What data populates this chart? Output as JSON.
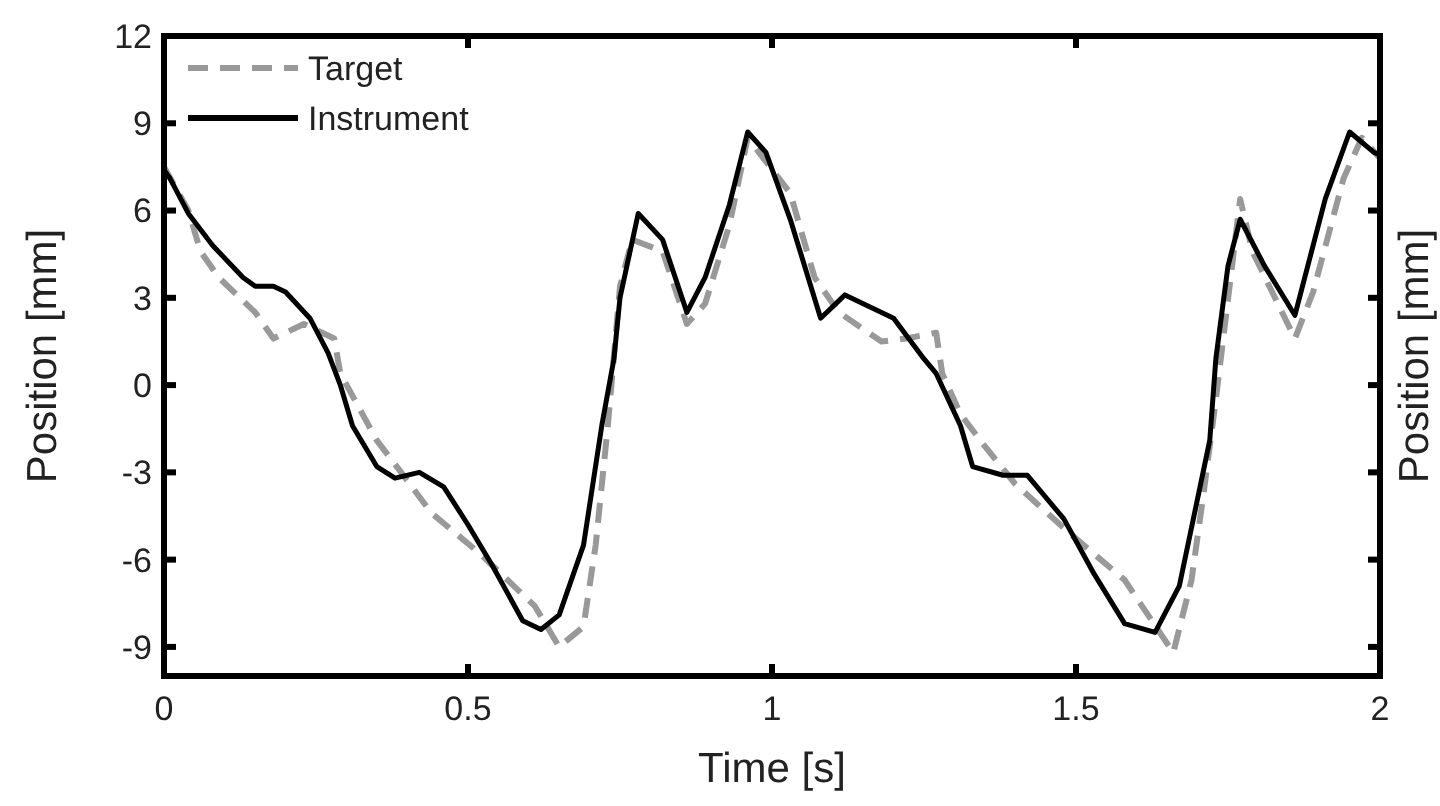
{
  "chart_data": {
    "type": "line",
    "xlabel": "Time [s]",
    "ylabel": "Position [mm]",
    "y2label": "Position [mm]",
    "xlim": [
      0,
      2
    ],
    "xticks": [
      0,
      0.5,
      1,
      1.5,
      2
    ],
    "ylim": [
      -10,
      12
    ],
    "yticks": [
      -9,
      -6,
      -3,
      0,
      3,
      6,
      9,
      12
    ],
    "legend": "top left",
    "grid": false,
    "series": [
      {
        "name": "Target",
        "color": "#999999",
        "line_style": "dashed",
        "x": [
          0,
          0.04,
          0.06,
          0.09,
          0.15,
          0.18,
          0.23,
          0.28,
          0.29,
          0.35,
          0.39,
          0.44,
          0.52,
          0.61,
          0.65,
          0.69,
          0.71,
          0.73,
          0.75,
          0.77,
          0.82,
          0.86,
          0.89,
          0.93,
          0.96,
          1.03,
          1.07,
          1.11,
          1.18,
          1.22,
          1.27,
          1.28,
          1.31,
          1.35,
          1.4,
          1.49,
          1.58,
          1.66,
          1.69,
          1.71,
          1.73,
          1.77,
          1.79,
          1.86,
          1.89,
          1.94,
          1.97,
          2
        ],
        "values": [
          7.5,
          6,
          4.6,
          3.7,
          2.5,
          1.6,
          2.1,
          1.6,
          0.4,
          -1.9,
          -3,
          -4.4,
          -5.8,
          -7.6,
          -9,
          -8.3,
          -5.5,
          -1.4,
          3.4,
          5,
          4.6,
          2.1,
          2.8,
          5.5,
          8.5,
          6.6,
          3.7,
          2.5,
          1.5,
          1.6,
          1.8,
          0.4,
          -1,
          -2.1,
          -3.4,
          -5.1,
          -6.7,
          -9.2,
          -6.7,
          -3.7,
          -0.5,
          6.4,
          4.6,
          1.6,
          3.2,
          7.1,
          8.5,
          7.8
        ]
      },
      {
        "name": "Instrument",
        "color": "#000000",
        "line_style": "solid",
        "x": [
          0,
          0.01,
          0.04,
          0.08,
          0.13,
          0.15,
          0.18,
          0.2,
          0.24,
          0.27,
          0.29,
          0.31,
          0.35,
          0.38,
          0.42,
          0.46,
          0.5,
          0.54,
          0.59,
          0.62,
          0.65,
          0.69,
          0.72,
          0.74,
          0.75,
          0.78,
          0.82,
          0.86,
          0.89,
          0.93,
          0.96,
          0.99,
          1.03,
          1.08,
          1.12,
          1.2,
          1.25,
          1.27,
          1.31,
          1.33,
          1.38,
          1.42,
          1.48,
          1.53,
          1.58,
          1.63,
          1.67,
          1.72,
          1.73,
          1.75,
          1.77,
          1.81,
          1.86,
          1.91,
          1.95,
          1.99,
          2
        ],
        "values": [
          7.4,
          7.1,
          5.9,
          4.8,
          3.7,
          3.4,
          3.4,
          3.2,
          2.3,
          1.1,
          0,
          -1.4,
          -2.8,
          -3.2,
          -3,
          -3.5,
          -4.8,
          -6.2,
          -8.1,
          -8.4,
          -7.9,
          -5.5,
          -1.4,
          0.9,
          3,
          5.9,
          5,
          2.5,
          3.7,
          6.2,
          8.7,
          8,
          5.7,
          2.3,
          3.1,
          2.3,
          0.9,
          0.4,
          -1.4,
          -2.8,
          -3.1,
          -3.1,
          -4.6,
          -6.5,
          -8.2,
          -8.5,
          -6.9,
          -1.9,
          0.9,
          4.1,
          5.7,
          4.1,
          2.4,
          6.4,
          8.7,
          8,
          7.9
        ]
      }
    ]
  }
}
